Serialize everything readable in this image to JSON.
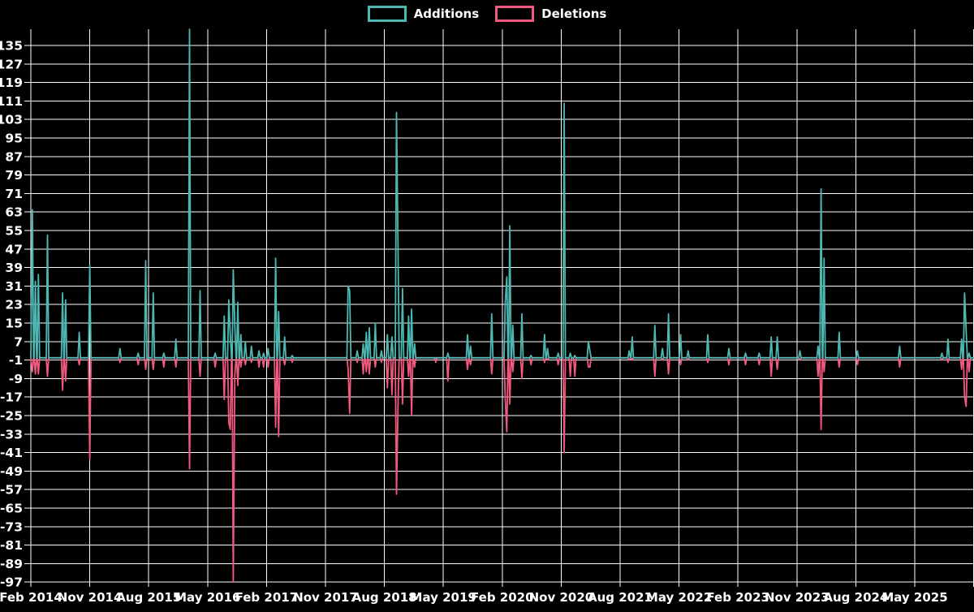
{
  "colors": {
    "additions": "#4db8b2",
    "deletions": "#f2597e",
    "grid": "#ffffff",
    "text": "#ffffff",
    "background": "#000000"
  },
  "chart_data": {
    "type": "line",
    "title": "",
    "xlabel": "",
    "ylabel": "",
    "grid": true,
    "legend_position": "top-center",
    "series": [
      {
        "name": "Additions"
      },
      {
        "name": "Deletions"
      }
    ],
    "y_ticks": [
      135,
      127,
      119,
      111,
      103,
      95,
      87,
      79,
      71,
      63,
      55,
      47,
      39,
      31,
      23,
      15,
      7,
      -1,
      -9,
      -17,
      -25,
      -33,
      -41,
      -49,
      -57,
      -65,
      -73,
      -81,
      -89,
      -97
    ],
    "ylim": [
      -97,
      143
    ],
    "x_tick_labels": [
      "Feb 2014",
      "Nov 2014",
      "Aug 2015",
      "May 2016",
      "Feb 2017",
      "Nov 2017",
      "Aug 2018",
      "May 2019",
      "Feb 2020",
      "Nov 2020",
      "Aug 2021",
      "May 2022",
      "Feb 2023",
      "Nov 2023",
      "Aug 2024",
      "May 2025"
    ],
    "x_tick_step_months": 9,
    "x_unit": "weeks since Feb 2014",
    "events_format": [
      "week_index",
      "additions",
      "deletions"
    ],
    "events": [
      [
        1,
        64,
        -6
      ],
      [
        3,
        33,
        -7
      ],
      [
        5,
        36,
        -7
      ],
      [
        11,
        53,
        -8
      ],
      [
        21,
        28,
        -14
      ],
      [
        23,
        25,
        -10
      ],
      [
        32,
        11,
        -3
      ],
      [
        39,
        40,
        -44
      ],
      [
        59,
        4,
        -2
      ],
      [
        71,
        2,
        -3
      ],
      [
        76,
        42,
        -5
      ],
      [
        81,
        28,
        -5
      ],
      [
        88,
        2,
        -4
      ],
      [
        96,
        8,
        -4
      ],
      [
        105,
        142,
        -48
      ],
      [
        112,
        29,
        -8
      ],
      [
        122,
        2,
        -4
      ],
      [
        128,
        18,
        -18
      ],
      [
        131,
        25,
        -28
      ],
      [
        132,
        10,
        -31
      ],
      [
        134,
        38,
        -97
      ],
      [
        135,
        14,
        -8
      ],
      [
        137,
        24,
        -12
      ],
      [
        139,
        10,
        -4
      ],
      [
        142,
        7,
        -3
      ],
      [
        146,
        5,
        -2
      ],
      [
        151,
        3,
        -4
      ],
      [
        154,
        2,
        -4
      ],
      [
        157,
        4,
        -4
      ],
      [
        162,
        43,
        -30
      ],
      [
        164,
        20,
        -34
      ],
      [
        168,
        9,
        -3
      ],
      [
        173,
        1,
        -2
      ],
      [
        210,
        31,
        -5
      ],
      [
        211,
        29,
        -24
      ],
      [
        216,
        3,
        -2
      ],
      [
        220,
        6,
        -7
      ],
      [
        222,
        11,
        -6
      ],
      [
        224,
        13,
        -7
      ],
      [
        228,
        15,
        -4
      ],
      [
        232,
        3,
        -2
      ],
      [
        236,
        10,
        -13
      ],
      [
        239,
        9,
        -16
      ],
      [
        242,
        106,
        -59
      ],
      [
        243,
        47,
        -20
      ],
      [
        246,
        30,
        -20
      ],
      [
        250,
        18,
        -8
      ],
      [
        252,
        21,
        -25
      ],
      [
        254,
        6,
        -4
      ],
      [
        268,
        0,
        -2
      ],
      [
        276,
        2,
        -10
      ],
      [
        289,
        10,
        -5
      ],
      [
        291,
        5,
        -3
      ],
      [
        305,
        19,
        -7
      ],
      [
        314,
        24,
        -18
      ],
      [
        315,
        35,
        -32
      ],
      [
        317,
        57,
        -20
      ],
      [
        319,
        14,
        -6
      ],
      [
        325,
        19,
        -9
      ],
      [
        331,
        1,
        -3
      ],
      [
        340,
        10,
        -2
      ],
      [
        342,
        4,
        -1
      ],
      [
        349,
        2,
        -3
      ],
      [
        353,
        110,
        -41
      ],
      [
        357,
        2,
        -8
      ],
      [
        360,
        1,
        -8
      ],
      [
        369,
        7,
        -4
      ],
      [
        370,
        3,
        -4
      ],
      [
        396,
        3,
        -1
      ],
      [
        398,
        9,
        -1
      ],
      [
        413,
        14,
        -8
      ],
      [
        418,
        4,
        -1
      ],
      [
        422,
        19,
        -7
      ],
      [
        430,
        10,
        -3
      ],
      [
        435,
        3,
        -1
      ],
      [
        448,
        10,
        -2
      ],
      [
        462,
        4,
        -3
      ],
      [
        473,
        2,
        -3
      ],
      [
        482,
        2,
        -3
      ],
      [
        490,
        9,
        -8
      ],
      [
        494,
        9,
        -5
      ],
      [
        509,
        3,
        -1
      ],
      [
        521,
        5,
        -8
      ],
      [
        523,
        73,
        -31
      ],
      [
        525,
        43,
        -6
      ],
      [
        535,
        11,
        -4
      ],
      [
        547,
        3,
        -3
      ],
      [
        575,
        5,
        -4
      ],
      [
        603,
        2,
        -1
      ],
      [
        607,
        8,
        -2
      ],
      [
        616,
        8,
        -5
      ],
      [
        618,
        28,
        -17
      ],
      [
        619,
        12,
        -21
      ],
      [
        621,
        2,
        -6
      ]
    ]
  }
}
